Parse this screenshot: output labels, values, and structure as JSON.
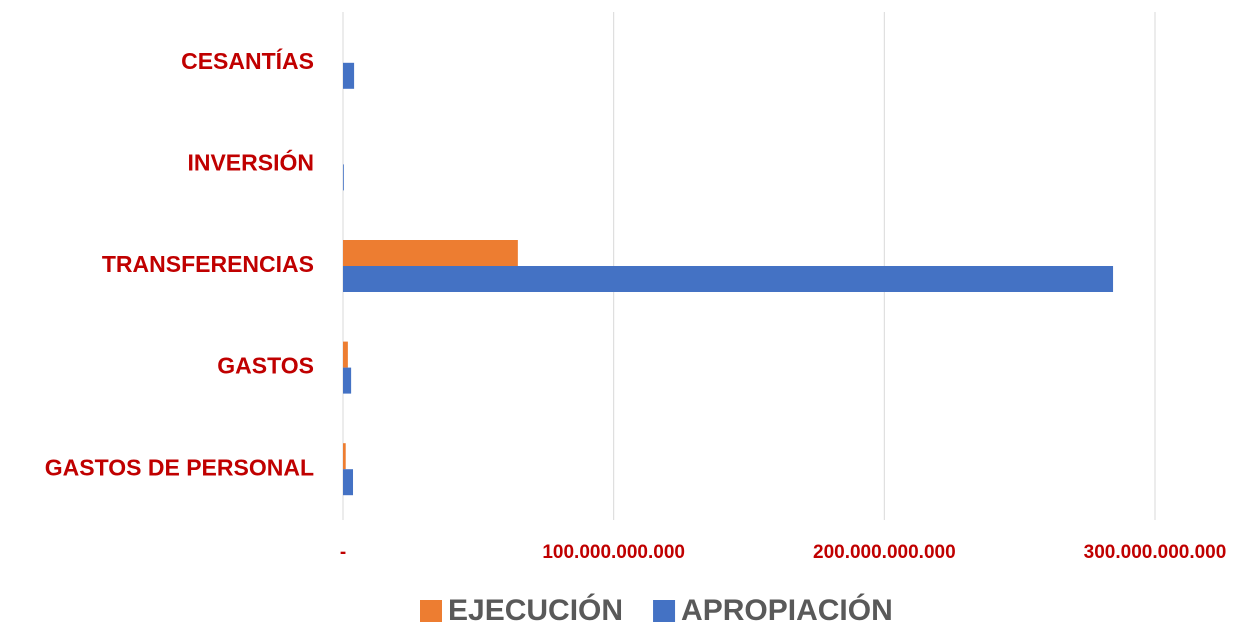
{
  "chart_data": {
    "type": "hbar",
    "categories": [
      "CESANTÍAS",
      "INVERSIÓN",
      "TRANSFERENCIAS",
      "GASTOS",
      "GASTOS DE PERSONAL"
    ],
    "series": [
      {
        "name": "EJECUCIÓN",
        "color": "#ed7d31",
        "values": [
          0,
          0,
          64600000000,
          1800000000,
          1000000000
        ]
      },
      {
        "name": "APROPIACIÓN",
        "color": "#4472c4",
        "values": [
          4100000000,
          300000000,
          284500000000,
          3000000000,
          3700000000
        ]
      }
    ],
    "xlim": [
      0,
      300000000000
    ],
    "xticks": [
      {
        "value": 0,
        "label": "-"
      },
      {
        "value": 100000000000,
        "label": "100.000.000.000"
      },
      {
        "value": 200000000000,
        "label": "200.000.000.000"
      },
      {
        "value": 300000000000,
        "label": "300.000.000.000"
      }
    ],
    "grid": true,
    "legend": "bottom"
  }
}
